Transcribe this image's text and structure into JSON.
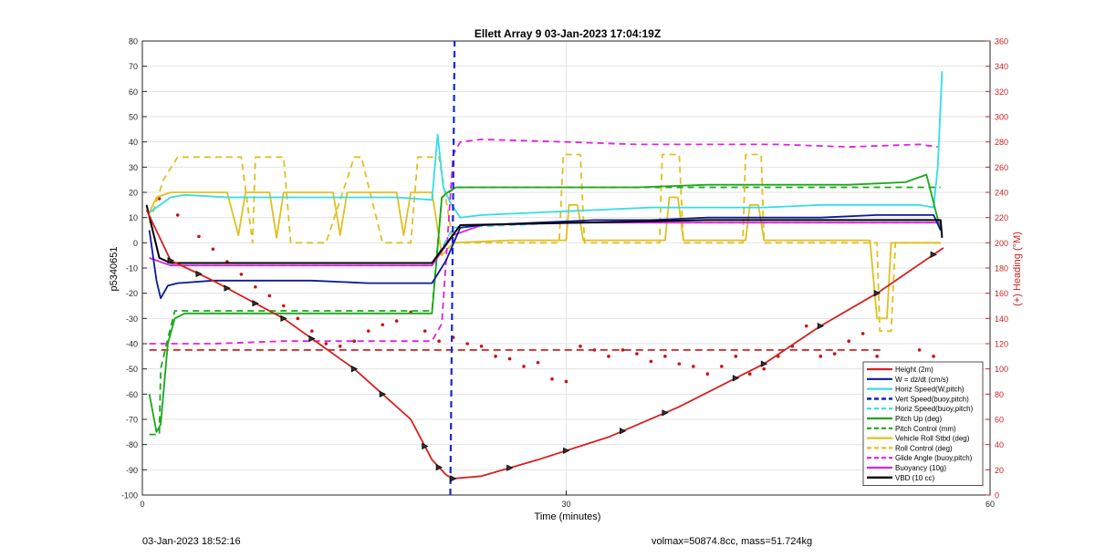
{
  "footer": {
    "left": "03-Jan-2023 18:52:16",
    "right": "volmax=50874.8cc, mass=51.724kg"
  },
  "chart_data": {
    "type": "line",
    "title": "Ellett Array 9 03-Jan-2023 17:04:19Z",
    "xlabel": "Time (minutes)",
    "ylabel": "p5340651",
    "y2label": "(+) Heading (°M)",
    "xlim": [
      0,
      60
    ],
    "ylim": [
      -100,
      80
    ],
    "y2lim": [
      0,
      360
    ],
    "xticks": [
      0,
      30,
      60
    ],
    "yticks": [
      -100,
      -90,
      -80,
      -70,
      -60,
      -50,
      -40,
      -30,
      -20,
      -10,
      0,
      10,
      20,
      30,
      40,
      50,
      60,
      70,
      80
    ],
    "y2ticks": [
      0,
      20,
      40,
      60,
      80,
      100,
      120,
      140,
      160,
      180,
      200,
      220,
      240,
      260,
      280,
      300,
      320,
      340,
      360
    ],
    "grid": true,
    "legend_position": "bottom-right",
    "colors": {
      "height": "#d42020",
      "w": "#0a1a9a",
      "horiz": "#33dde8",
      "vert_buoy": "#1428d6",
      "pitch_up": "#1aa81a",
      "pitch_control": "#1aa81a",
      "roll": "#e0c020",
      "glide": "#e020e0",
      "buoyancy": "#e020e0",
      "vbd": "#000000",
      "heading": "#cc1111",
      "right_axis": "#cc2222"
    },
    "series": [
      {
        "name": "Height (2m)",
        "x": [
          0.3,
          2,
          5,
          10,
          15,
          19,
          20.5,
          21.5,
          22,
          24,
          28,
          33,
          38,
          44,
          48,
          52,
          56.7
        ],
        "y": [
          13,
          -7,
          -15,
          -30,
          -50,
          -70,
          -86,
          -92,
          -93.5,
          -92.5,
          -86,
          -77,
          -65,
          -48,
          -33,
          -20,
          -2
        ]
      },
      {
        "name": "W = dz/dt (cm/s)",
        "x": [
          0.5,
          1,
          1.3,
          1.8,
          2.5,
          5,
          8,
          12,
          16,
          20.5,
          21.5,
          22.5,
          24,
          28,
          32,
          36,
          40,
          44,
          48,
          52,
          56,
          56.5
        ],
        "y": [
          5,
          -15,
          -22,
          -17,
          -16,
          -15,
          -15,
          -15,
          -16,
          -16,
          -7,
          6,
          7,
          8,
          9,
          9,
          10,
          10,
          10,
          11,
          11,
          5
        ]
      },
      {
        "name": "Horiz Speed(W,pitch)",
        "x": [
          0.5,
          1,
          2,
          3,
          6,
          10,
          14,
          18,
          20.5,
          20.9,
          21.3,
          21.8,
          22.5,
          24,
          28,
          32,
          36,
          40,
          44,
          48,
          52,
          55,
          56,
          56.3,
          56.6
        ],
        "y": [
          12,
          14,
          18,
          19,
          18,
          18,
          18,
          18,
          17,
          43,
          22,
          16,
          10,
          11,
          12,
          13,
          14,
          14,
          14,
          15,
          15,
          15,
          14,
          30,
          68
        ]
      },
      {
        "name": "Vert Speed(buoy,pitch)",
        "x": [
          21.8,
          22.1
        ],
        "y": [
          -100,
          80
        ]
      },
      {
        "name": "Horiz Speed(buoy,pitch)",
        "x": [
          0.5,
          2,
          10,
          20.5,
          22,
          30,
          40,
          50,
          56.5
        ],
        "y": [
          -6,
          -9,
          -9,
          -9,
          6,
          8,
          8,
          8,
          8
        ]
      },
      {
        "name": "Pitch Up (deg)",
        "x": [
          0.5,
          1,
          1.3,
          1.8,
          2.3,
          3,
          8,
          14,
          20.5,
          20.8,
          21.2,
          21.6,
          22.2,
          26,
          30,
          35,
          40,
          45,
          50,
          54,
          55.5,
          56.5
        ],
        "y": [
          -60,
          -75,
          -72,
          -40,
          -30,
          -28,
          -28,
          -28,
          -28,
          -8,
          18,
          20,
          22,
          22,
          22,
          22,
          23,
          23,
          23,
          24,
          27,
          5
        ]
      },
      {
        "name": "Pitch Control (mm)",
        "x": [
          0.5,
          1.2,
          1.3,
          1.8,
          2.3,
          14,
          20.5,
          21.2,
          22.2,
          40,
          56.5
        ],
        "y": [
          -76,
          -76,
          -50,
          -38,
          -27,
          -27,
          -27,
          18,
          22,
          22,
          22
        ]
      },
      {
        "name": "Vehicle Roll Stbd (deg)",
        "x": [
          0.5,
          1,
          2,
          6,
          6.8,
          7.3,
          9,
          9.5,
          10,
          13.5,
          14,
          14.5,
          18,
          18.5,
          19,
          20.5,
          21.2,
          22,
          26,
          30,
          30.2,
          30.5,
          30.8,
          31.2,
          34,
          37,
          37.3,
          37.6,
          37.9,
          38.3,
          41,
          42.7,
          43,
          43.3,
          43.6,
          44,
          50,
          51.5,
          52,
          52.3,
          52.7,
          53,
          56.5
        ],
        "y": [
          12,
          18,
          20,
          20,
          3,
          20,
          20,
          2,
          20,
          20,
          3,
          20,
          20,
          3,
          20,
          20,
          -5,
          0,
          1,
          1,
          15,
          15,
          15,
          1,
          1,
          1,
          18,
          18,
          18,
          1,
          1,
          1,
          15,
          15,
          15,
          1,
          1,
          1,
          -30,
          -30,
          -30,
          0,
          0
        ]
      },
      {
        "name": "Roll Control (deg)",
        "x": [
          0.5,
          1.5,
          2.5,
          7,
          7.8,
          8,
          10,
          10.5,
          13,
          15,
          15.5,
          17,
          19,
          19.5,
          21,
          22,
          29.5,
          29.8,
          30,
          31,
          31.3,
          36.6,
          36.8,
          37,
          38,
          38.3,
          42.5,
          42.7,
          43,
          43.8,
          44,
          48,
          48.3,
          49,
          52,
          52.2,
          52.4,
          53,
          53.3,
          56.5
        ],
        "y": [
          8,
          25,
          34,
          34,
          0,
          34,
          34,
          0,
          0,
          34,
          34,
          0,
          0,
          34,
          34,
          0,
          0,
          35,
          35,
          35,
          0,
          0,
          35,
          35,
          35,
          0,
          0,
          35,
          35,
          35,
          0,
          0,
          0,
          0,
          0,
          -35,
          -35,
          -35,
          0,
          0
        ]
      },
      {
        "name": "Glide Angle (buoy,pitch)",
        "x": [
          0.5,
          2,
          5,
          10,
          15,
          19,
          20.5,
          21.2,
          22,
          22.5,
          24,
          30,
          35,
          40,
          45,
          50,
          55,
          56.3
        ],
        "y": [
          -40,
          -40,
          -40,
          -39,
          -39,
          -39,
          -39,
          -32,
          35,
          40,
          41,
          40,
          39,
          39,
          39,
          38,
          39,
          38
        ]
      },
      {
        "name": "Buoyancy (10g)",
        "x": [
          0.5,
          2,
          10,
          20.5,
          22,
          24,
          30,
          40,
          50,
          56.5
        ],
        "y": [
          -6,
          -9,
          -9,
          -9,
          3,
          7,
          8,
          8,
          8,
          8
        ]
      },
      {
        "name": "VBD (10 cc)",
        "x": [
          0.3,
          1.2,
          2,
          10,
          20.5,
          22.5,
          40,
          56.5,
          56.6
        ],
        "y": [
          15,
          -6,
          -8,
          -8,
          -8,
          7,
          9,
          9,
          2
        ]
      }
    ],
    "heading_series": {
      "axis": "right",
      "x": [
        1.2,
        2.5,
        4,
        5,
        6,
        7,
        8,
        9,
        10,
        11,
        12,
        13,
        14,
        15,
        16,
        17,
        18,
        19,
        20,
        21,
        22,
        23,
        24,
        25,
        26,
        27,
        28,
        29,
        30,
        31,
        32,
        33,
        34,
        35,
        36,
        37,
        38,
        39,
        40,
        41,
        42,
        43,
        44,
        45,
        46,
        47,
        48,
        49,
        50,
        51,
        52,
        53,
        54,
        55,
        56
      ],
      "y": [
        235,
        222,
        205,
        195,
        185,
        175,
        165,
        158,
        150,
        140,
        130,
        120,
        118,
        122,
        130,
        135,
        138,
        145,
        130,
        122,
        125,
        120,
        118,
        110,
        108,
        102,
        105,
        92,
        90,
        118,
        115,
        110,
        115,
        112,
        106,
        110,
        104,
        102,
        96,
        102,
        110,
        96,
        100,
        110,
        118,
        134,
        110,
        112,
        122,
        128,
        110,
        104,
        98,
        115,
        110
      ]
    },
    "heading_reference": {
      "axis": "right",
      "value": 115
    }
  }
}
